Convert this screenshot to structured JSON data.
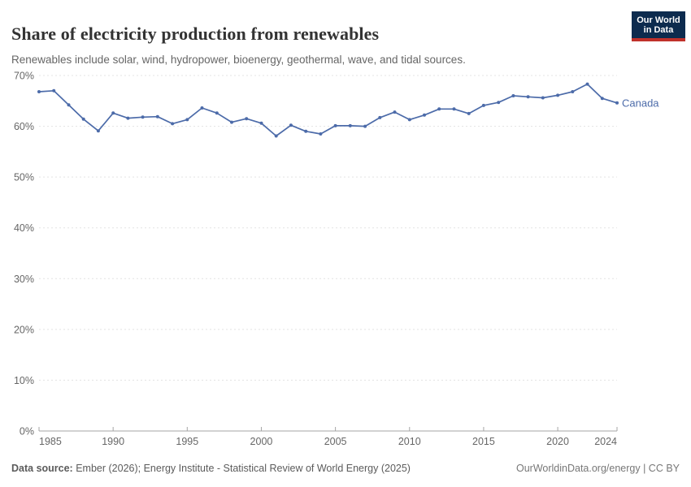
{
  "header": {
    "title": "Share of electricity production from renewables",
    "subtitle": "Renewables include solar, wind, hydropower, bioenergy, geothermal, wave, and tidal sources.",
    "logo": {
      "line1": "Our World",
      "line2": "in Data"
    }
  },
  "chart_data": {
    "type": "line",
    "title": "Share of electricity production from renewables",
    "xlabel": "",
    "ylabel": "",
    "x": [
      1985,
      1986,
      1987,
      1988,
      1989,
      1990,
      1991,
      1992,
      1993,
      1994,
      1995,
      1996,
      1997,
      1998,
      1999,
      2000,
      2001,
      2002,
      2003,
      2004,
      2005,
      2006,
      2007,
      2008,
      2009,
      2010,
      2011,
      2012,
      2013,
      2014,
      2015,
      2016,
      2017,
      2018,
      2019,
      2020,
      2021,
      2022,
      2023,
      2024
    ],
    "series": [
      {
        "name": "Canada",
        "values": [
          66.8,
          67.0,
          64.2,
          61.4,
          59.1,
          62.6,
          61.6,
          61.8,
          61.9,
          60.5,
          61.3,
          63.6,
          62.6,
          60.8,
          61.5,
          60.6,
          58.1,
          60.2,
          59.0,
          58.5,
          60.1,
          60.1,
          60.0,
          61.7,
          62.8,
          61.3,
          62.2,
          63.4,
          63.4,
          62.5,
          64.1,
          64.7,
          66.0,
          65.8,
          65.6,
          66.1,
          66.8,
          68.3,
          65.5,
          64.6
        ]
      }
    ],
    "ylim": [
      0,
      70
    ],
    "ytick_step": 10,
    "ytick_suffix": "%",
    "xticks": [
      1985,
      1990,
      1995,
      2000,
      2005,
      2010,
      2015,
      2020,
      2024
    ],
    "grid": "horizontal-dashed",
    "legend_position": "end-of-line",
    "entity_label": "Canada"
  },
  "footer": {
    "source_label": "Data source:",
    "source_text": " Ember (2026); Energy Institute - Statistical Review of World Energy (2025)",
    "right_text": "OurWorldinData.org/energy | CC BY"
  },
  "colors": {
    "series_line": "#4c6ba9",
    "grid_line": "#e3e3e3",
    "axis_line": "#a5a5a5",
    "tick_label": "#666666",
    "logo_bg": "#0d2b4e",
    "logo_accent": "#c0312b"
  }
}
